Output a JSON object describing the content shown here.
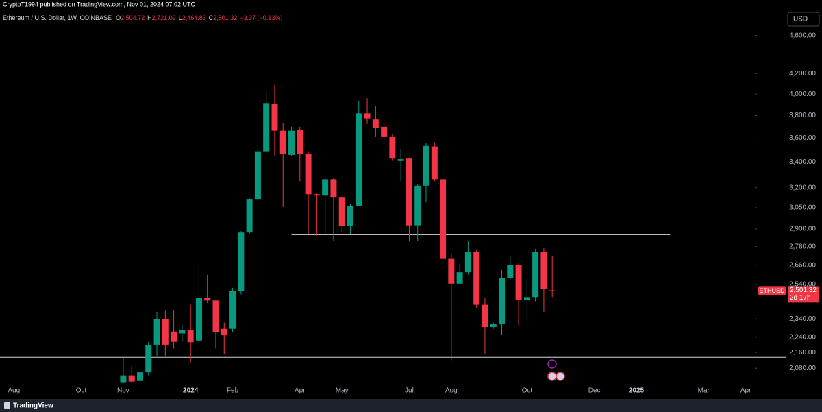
{
  "header": {
    "publisher": "CryptoT1994 published on TradingView.com, Nov 01, 2024 07:02 UTC"
  },
  "legend": {
    "name": "Ethereum / U.S. Dollar, 1W, COINBASE",
    "ohlc": [
      {
        "key": "O",
        "value": "2,504.72"
      },
      {
        "key": "H",
        "value": "2,721.09"
      },
      {
        "key": "L",
        "value": "2,464.83"
      },
      {
        "key": "C",
        "value": "2,501.32"
      }
    ],
    "change": "−3.37 (−0.13%)"
  },
  "currency": "USD",
  "price_tag": {
    "symbol": "ETHUSD",
    "price": "2,501.32",
    "countdown": "2d 17h"
  },
  "footer": "TradingView",
  "chart_data": {
    "type": "candlestick",
    "log_scale": true,
    "grid": false,
    "up_color": "#089981",
    "down_color": "#f23645",
    "ylim": [
      2004,
      4860
    ],
    "yticks": [
      {
        "value": 2080,
        "label": "2,080.00"
      },
      {
        "value": 2160,
        "label": "2,160.00"
      },
      {
        "value": 2240,
        "label": "2,240.00"
      },
      {
        "value": 2340,
        "label": "2,340.00"
      },
      {
        "value": 2540,
        "label": "2,540.00"
      },
      {
        "value": 2660,
        "label": "2,660.00"
      },
      {
        "value": 2780,
        "label": "2,780.00"
      },
      {
        "value": 2900,
        "label": "2,900.00"
      },
      {
        "value": 3050,
        "label": "3,050.00"
      },
      {
        "value": 3200,
        "label": "3,200.00"
      },
      {
        "value": 3400,
        "label": "3,400.00"
      },
      {
        "value": 3600,
        "label": "3,600.00"
      },
      {
        "value": 3800,
        "label": "3,800.00"
      },
      {
        "value": 4000,
        "label": "4,000.00"
      },
      {
        "value": 4200,
        "label": "4,200.00"
      },
      {
        "value": 4600,
        "label": "4,600.00"
      }
    ],
    "categories": [
      null,
      "Aug",
      null,
      null,
      null,
      null,
      null,
      null,
      null,
      "Oct",
      null,
      null,
      null,
      null,
      "Nov",
      null,
      null,
      null,
      null,
      null,
      null,
      null,
      "2024",
      null,
      null,
      null,
      null,
      "Feb",
      null,
      null,
      null,
      null,
      null,
      null,
      null,
      "Apr",
      null,
      null,
      null,
      null,
      "May",
      null,
      null,
      null,
      null,
      null,
      null,
      null,
      "Jul",
      null,
      null,
      null,
      null,
      "Aug",
      null,
      null,
      null,
      null,
      null,
      null,
      null,
      null,
      "Oct",
      null,
      null,
      null,
      null,
      null,
      null,
      null,
      "Dec",
      null,
      null,
      null,
      null,
      "2025",
      null,
      null,
      null,
      null,
      null,
      null,
      null,
      "Mar",
      null,
      null,
      null,
      null,
      "Apr",
      null
    ],
    "open": [
      null,
      null,
      null,
      null,
      null,
      null,
      null,
      null,
      null,
      null,
      null,
      null,
      null,
      null,
      2012,
      2045,
      2018,
      2060,
      2200,
      2340,
      2270,
      2260,
      2280,
      2222,
      2460,
      2445,
      2285,
      2285,
      2500,
      2875,
      3110,
      3490,
      3905,
      3665,
      3460,
      3670,
      3470,
      3150,
      3140,
      3265,
      3125,
      2920,
      3065,
      3820,
      3765,
      3700,
      3610,
      3410,
      3430,
      2925,
      3215,
      3530,
      3265,
      2700,
      2545,
      2615,
      2745,
      2420,
      2295,
      2310,
      2580,
      2660,
      2450,
      2465,
      2745,
      2504.72,
      null,
      null,
      null,
      null,
      null,
      null,
      null,
      null,
      null,
      null,
      null,
      null,
      null,
      null,
      null,
      null,
      null,
      null,
      null,
      null,
      null,
      null,
      null,
      null
    ],
    "high": [
      null,
      null,
      null,
      null,
      null,
      null,
      null,
      null,
      null,
      null,
      null,
      null,
      null,
      null,
      2135,
      2090,
      2075,
      2215,
      2380,
      2390,
      2390,
      2305,
      2420,
      2670,
      2600,
      2450,
      2320,
      2520,
      2885,
      3120,
      3530,
      4030,
      4090,
      3730,
      3700,
      3700,
      3490,
      3155,
      3300,
      3275,
      3135,
      3080,
      3935,
      3960,
      3890,
      3730,
      3640,
      3510,
      3440,
      3225,
      3560,
      3565,
      3390,
      2735,
      2670,
      2820,
      2760,
      2460,
      2320,
      2630,
      2715,
      2675,
      2580,
      2765,
      2770,
      2721.09,
      null,
      null,
      null,
      null,
      null,
      null,
      null,
      null,
      null,
      null,
      null,
      null,
      null,
      null,
      null,
      null,
      null,
      null,
      null,
      null,
      null,
      null,
      null,
      null
    ],
    "low": [
      null,
      null,
      null,
      null,
      null,
      null,
      null,
      null,
      null,
      null,
      null,
      null,
      null,
      null,
      2008,
      2008,
      2012,
      2045,
      2140,
      2140,
      2180,
      2215,
      2110,
      2210,
      2430,
      2180,
      2150,
      2265,
      2480,
      2865,
      3095,
      3480,
      3450,
      3055,
      3450,
      3250,
      2865,
      2855,
      2855,
      2820,
      2875,
      2865,
      3060,
      3725,
      3610,
      3550,
      3410,
      3250,
      2820,
      2820,
      3090,
      3250,
      2690,
      2120,
      2540,
      2600,
      2400,
      2150,
      2285,
      2250,
      2565,
      2305,
      2330,
      2440,
      2380,
      2464.83,
      null,
      null,
      null,
      null,
      null,
      null,
      null,
      null,
      null,
      null,
      null,
      null,
      null,
      null,
      null,
      null,
      null,
      null,
      null,
      null,
      null,
      null,
      null,
      null
    ],
    "close": [
      null,
      null,
      null,
      null,
      null,
      null,
      null,
      null,
      null,
      null,
      null,
      null,
      null,
      null,
      2045,
      2015,
      2060,
      2200,
      2340,
      2200,
      2215,
      2280,
      2213,
      2460,
      2445,
      2265,
      2250,
      2500,
      2875,
      3110,
      3490,
      3915,
      3665,
      3470,
      3665,
      3470,
      3150,
      3140,
      3265,
      3125,
      2920,
      3065,
      3820,
      3775,
      3690,
      3610,
      3430,
      3425,
      2925,
      3215,
      3535,
      3265,
      2700,
      2545,
      2615,
      2745,
      2420,
      2295,
      2310,
      2580,
      2660,
      2450,
      2465,
      2745,
      2515,
      2501.32,
      null,
      null,
      null,
      null,
      null,
      null,
      null,
      null,
      null,
      null,
      null,
      null,
      null,
      null,
      null,
      null,
      null,
      null,
      null,
      null,
      null,
      null,
      null,
      null
    ],
    "hlines": [
      {
        "value": 2860,
        "from": 34,
        "to": 79
      },
      {
        "value": 2135
      }
    ]
  }
}
